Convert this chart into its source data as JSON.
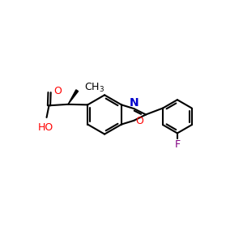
{
  "background_color": "#ffffff",
  "bond_color": "#000000",
  "o_color": "#ff0000",
  "n_color": "#0000cc",
  "f_color": "#800080",
  "bond_width": 1.5,
  "font_size": 9,
  "xlim": [
    0,
    10
  ],
  "ylim": [
    0,
    10
  ]
}
